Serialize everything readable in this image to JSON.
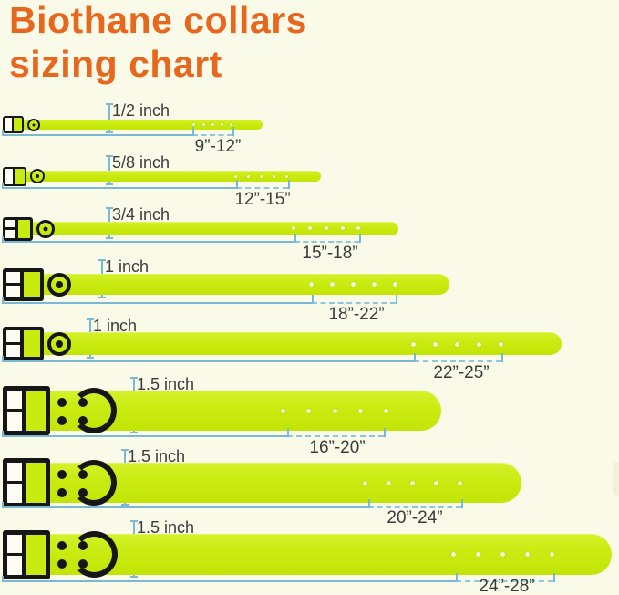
{
  "title": {
    "line1": "Biothane collars",
    "line2": "sizing chart"
  },
  "rows": [
    {
      "width_label": "1/2 inch",
      "size_range": "9”-12”"
    },
    {
      "width_label": "5/8 inch",
      "size_range": "12”-15”"
    },
    {
      "width_label": "3/4 inch",
      "size_range": "15”-18”"
    },
    {
      "width_label": "1 inch",
      "size_range": "18”-22”"
    },
    {
      "width_label": "1 inch",
      "size_range": "22”-25”"
    },
    {
      "width_label": "1.5 inch",
      "size_range": "16”-20”"
    },
    {
      "width_label": "1.5 inch",
      "size_range": "20”-24”"
    },
    {
      "width_label": "1.5 inch",
      "size_range": "24”-28”"
    }
  ],
  "colors": {
    "background": "#fafae9",
    "title_orange": "#e8671e",
    "collar_green": "#c9eb10",
    "buckle_black": "#161616",
    "dimension_blue": "#79b9d6",
    "label_gray": "#3c3c3c"
  },
  "chart_data": {
    "type": "table",
    "title": "Biothane collars sizing chart",
    "columns": [
      "collar_width",
      "fits_neck_size"
    ],
    "rows": [
      [
        "1/2 inch",
        "9\"-12\""
      ],
      [
        "5/8 inch",
        "12\"-15\""
      ],
      [
        "3/4 inch",
        "15\"-18\""
      ],
      [
        "1 inch",
        "18\"-22\""
      ],
      [
        "1 inch",
        "22\"-25\""
      ],
      [
        "1.5 inch",
        "16\"-20\""
      ],
      [
        "1.5 inch",
        "20\"-24\""
      ],
      [
        "1.5 inch",
        "24\"-28\""
      ]
    ]
  }
}
